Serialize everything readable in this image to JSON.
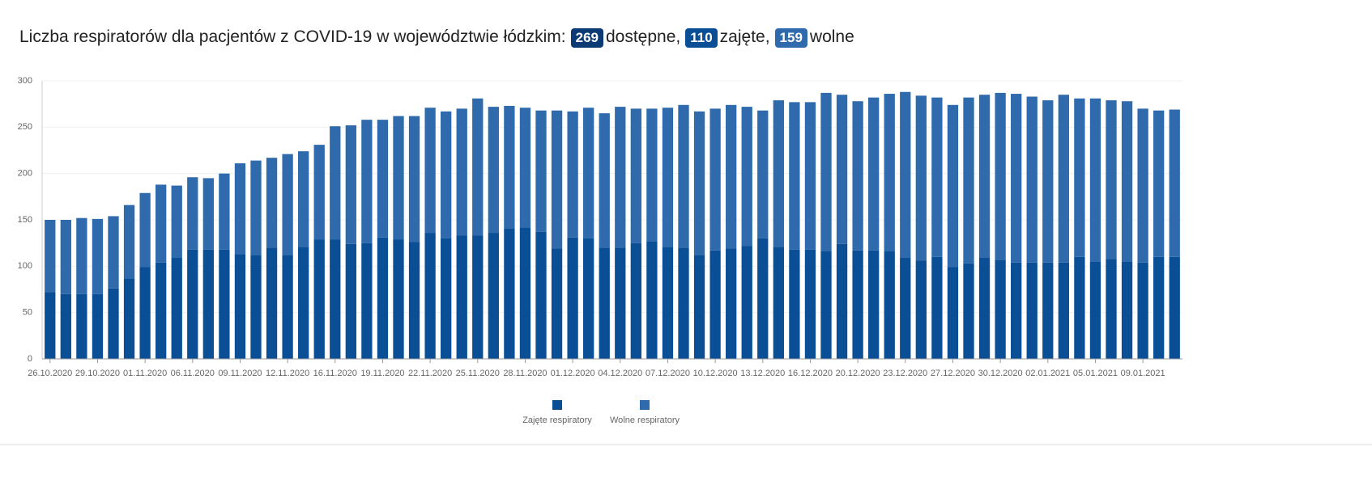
{
  "headline": {
    "text": "Liczba respiratorów dla pacjentów z COVID-19 w województwie łódzkim:",
    "badges": [
      {
        "value": 269,
        "text": "dostępne,",
        "color": "#0b3a75"
      },
      {
        "value": 110,
        "text": "zajęte,",
        "color": "#0a4f96"
      },
      {
        "value": 159,
        "text": "wolne",
        "color": "#2f6aad"
      }
    ]
  },
  "chart_data": {
    "type": "stacked_bar",
    "categories": [
      "26.10.2020",
      null,
      null,
      "29.10.2020",
      null,
      null,
      "01.11.2020",
      null,
      null,
      "06.11.2020",
      null,
      null,
      "09.11.2020",
      null,
      null,
      "12.11.2020",
      null,
      null,
      "16.11.2020",
      null,
      null,
      "19.11.2020",
      null,
      null,
      "22.11.2020",
      null,
      null,
      "25.11.2020",
      null,
      null,
      "28.11.2020",
      null,
      null,
      "01.12.2020",
      null,
      null,
      "04.12.2020",
      null,
      null,
      "07.12.2020",
      null,
      null,
      "10.12.2020",
      null,
      null,
      "13.12.2020",
      null,
      null,
      "16.12.2020",
      null,
      null,
      "20.12.2020",
      null,
      null,
      "23.12.2020",
      null,
      null,
      "27.12.2020",
      null,
      null,
      "30.12.2020",
      null,
      null,
      "02.01.2021",
      null,
      null,
      "05.01.2021",
      null,
      null,
      "09.01.2021",
      null,
      null
    ],
    "series": [
      {
        "name": "Zajęte respiratory",
        "color": "#0a4f96",
        "values": [
          72,
          70,
          70,
          70,
          76,
          87,
          99,
          104,
          109,
          118,
          118,
          118,
          113,
          112,
          120,
          112,
          121,
          129,
          129,
          124,
          125,
          131,
          129,
          126,
          136,
          130,
          133,
          133,
          136,
          141,
          142,
          137,
          119,
          131,
          130,
          120,
          120,
          125,
          127,
          121,
          120,
          112,
          117,
          119,
          122,
          130,
          121,
          118,
          118,
          116,
          124,
          117,
          117,
          116,
          109,
          106,
          110,
          99,
          103,
          109,
          107,
          104,
          104,
          104,
          104,
          110,
          105,
          108,
          105,
          104,
          110,
          110
        ]
      },
      {
        "name": "Wolne respiratory",
        "color": "#2f6aad",
        "values": [
          78,
          80,
          82,
          81,
          78,
          79,
          80,
          84,
          78,
          78,
          77,
          82,
          98,
          102,
          97,
          109,
          103,
          102,
          122,
          128,
          133,
          127,
          133,
          136,
          135,
          137,
          137,
          148,
          136,
          132,
          129,
          131,
          149,
          136,
          141,
          145,
          152,
          145,
          143,
          150,
          154,
          155,
          153,
          155,
          150,
          138,
          158,
          159,
          159,
          171,
          161,
          161,
          165,
          170,
          179,
          178,
          172,
          175,
          179,
          176,
          180,
          182,
          179,
          175,
          181,
          171,
          176,
          171,
          173,
          166,
          158,
          159
        ]
      }
    ],
    "ylim": [
      0,
      300
    ],
    "yticks": [
      0,
      50,
      100,
      150,
      200,
      250,
      300
    ],
    "grid": true,
    "legend": "bottom"
  }
}
